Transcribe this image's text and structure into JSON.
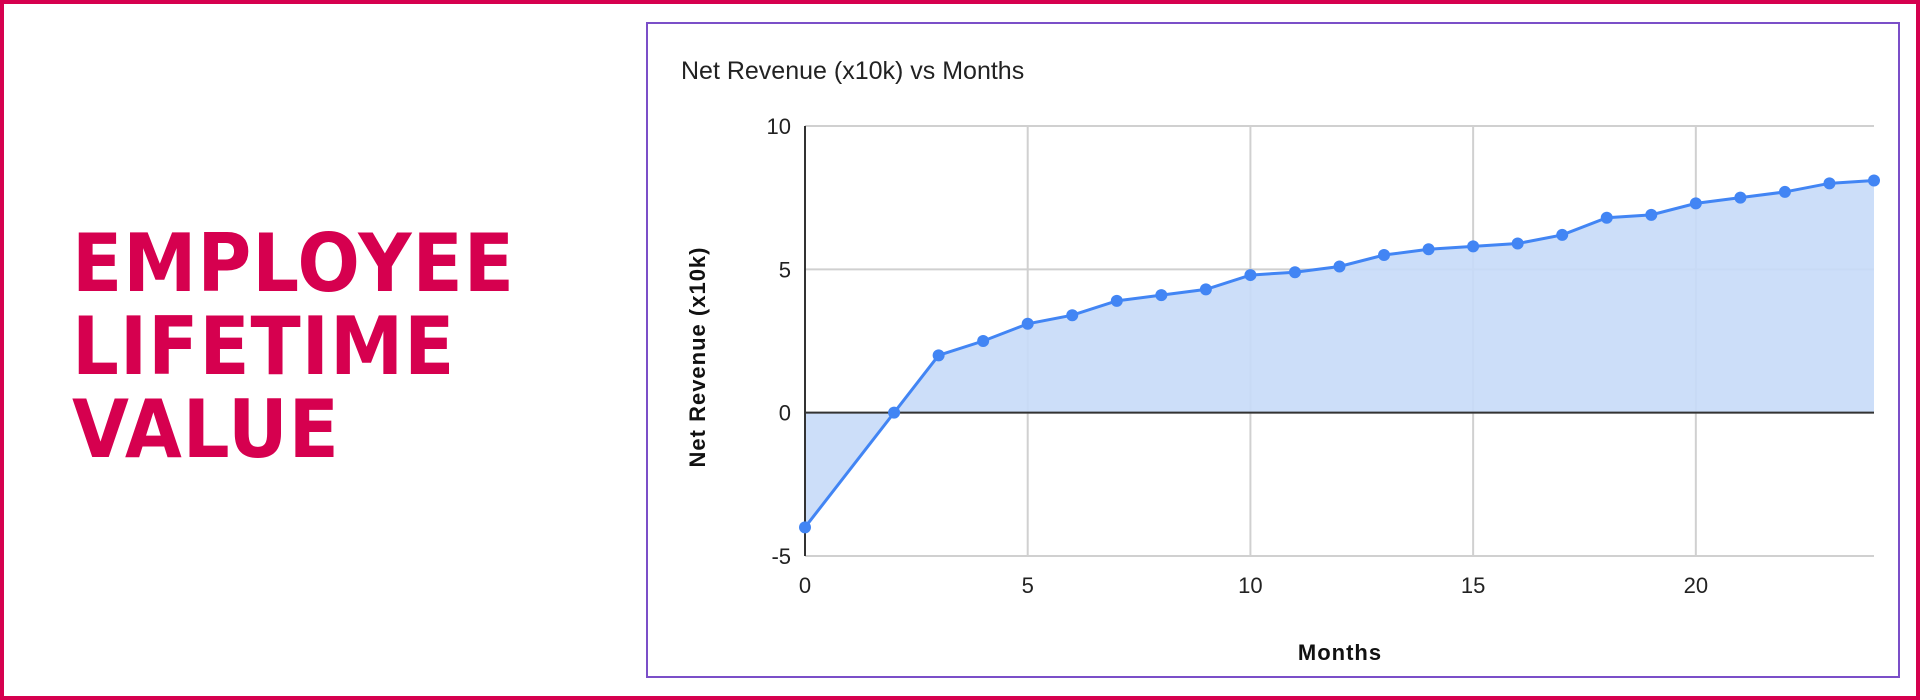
{
  "headline": {
    "lines": [
      "EMPLOYEE",
      "LIFETIME",
      "VALUE"
    ],
    "color": "#D6004F"
  },
  "colors": {
    "outer_border": "#D6004F",
    "chart_border": "#7B4FC8",
    "line": "#4285F4",
    "fill": "#C6DAF8",
    "grid": "#D0D0D0",
    "zero_line": "#333333"
  },
  "chart_data": {
    "type": "area",
    "title": "Net Revenue (x10k) vs Months",
    "xlabel": "Months",
    "ylabel": "Net Revenue (x10k)",
    "x": [
      0,
      2,
      3,
      4,
      5,
      6,
      7,
      8,
      9,
      10,
      11,
      12,
      13,
      14,
      15,
      16,
      17,
      18,
      19,
      20,
      21,
      22,
      23,
      24
    ],
    "series": [
      {
        "name": "Net Revenue (x10k)",
        "values": [
          -4,
          0,
          2,
          2.5,
          3.1,
          3.4,
          3.9,
          4.1,
          4.3,
          4.8,
          4.9,
          5.1,
          5.5,
          5.7,
          5.8,
          5.9,
          6.2,
          6.8,
          6.9,
          7.3,
          7.5,
          7.7,
          8.0,
          8.1
        ]
      }
    ],
    "xlim": [
      0,
      24
    ],
    "ylim": [
      -5,
      10
    ],
    "xticks": [
      "0",
      "5",
      "10",
      "15",
      "20"
    ],
    "yticks": [
      "10",
      "5",
      "0",
      "-5"
    ],
    "grid": true,
    "legend": "none"
  }
}
